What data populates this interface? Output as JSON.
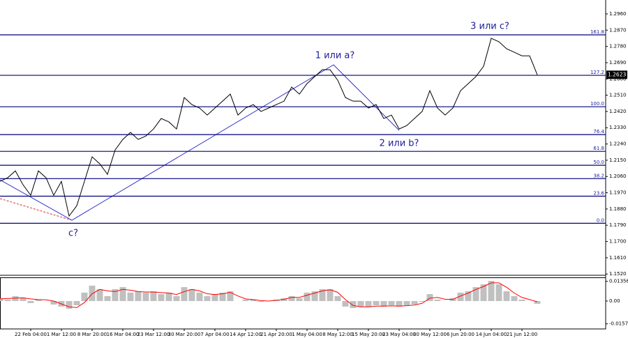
{
  "chart_data": [
    {
      "type": "line",
      "categories": [
        null,
        null,
        null,
        null,
        "22 Feb 04:00",
        null,
        null,
        null,
        "1 Mar 12:00",
        null,
        null,
        null,
        "8 Mar 20:00",
        null,
        null,
        null,
        "16 Mar 04:00",
        null,
        null,
        null,
        "23 Mar 12:00",
        null,
        null,
        null,
        "30 Mar 20:00",
        null,
        null,
        null,
        "7 Apr 04:00",
        null,
        null,
        null,
        "14 Apr 12:00",
        null,
        null,
        null,
        "21 Apr 20:00",
        null,
        null,
        null,
        "1 May 04:00",
        null,
        null,
        null,
        "8 May 12:00",
        null,
        null,
        null,
        "15 May 20:00",
        null,
        null,
        null,
        "23 May 04:00",
        null,
        null,
        null,
        "30 May 12:00",
        null,
        null,
        null,
        "6 Jun 20:00",
        null,
        null,
        null,
        "14 Jun 04:00",
        null,
        null,
        null,
        "21 Jun 12:00",
        null,
        null
      ],
      "values": [
        1.2033,
        1.2053,
        1.2091,
        1.2014,
        1.1956,
        1.2091,
        1.2053,
        1.1956,
        1.2033,
        1.1841,
        1.1898,
        1.2033,
        1.2169,
        1.213,
        1.2072,
        1.2207,
        1.2265,
        1.2304,
        1.2265,
        1.2284,
        1.2323,
        1.2381,
        1.2362,
        1.2323,
        1.2497,
        1.2458,
        1.2439,
        1.24,
        1.2439,
        1.2477,
        1.2516,
        1.24,
        1.2439,
        1.2458,
        1.242,
        1.2439,
        1.2458,
        1.2477,
        1.2555,
        1.2516,
        1.2574,
        1.2613,
        1.2651,
        1.2651,
        1.2593,
        1.2497,
        1.2477,
        1.2477,
        1.2439,
        1.2458,
        1.2381,
        1.24,
        1.2323,
        1.2342,
        1.2381,
        1.242,
        1.2535,
        1.2439,
        1.24,
        1.2439,
        1.2535,
        1.2574,
        1.2613,
        1.267,
        1.2825,
        1.2806,
        1.2767,
        1.2748,
        1.2728,
        1.2728,
        1.2623
      ],
      "color": "#000000",
      "ylim": [
        1.1513,
        1.3037
      ],
      "yticks": [
        {
          "value": 1.296,
          "label": "1.2960"
        },
        {
          "value": 1.287,
          "label": "1.2870"
        },
        {
          "value": 1.278,
          "label": "1.2780"
        },
        {
          "value": 1.269,
          "label": "1.2690"
        },
        {
          "value": 1.26,
          "label": "1.2600"
        },
        {
          "value": 1.251,
          "label": "1.2510"
        },
        {
          "value": 1.242,
          "label": "1.2420"
        },
        {
          "value": 1.233,
          "label": "1.2330"
        },
        {
          "value": 1.224,
          "label": "1.2240"
        },
        {
          "value": 1.215,
          "label": "1.2150"
        },
        {
          "value": 1.206,
          "label": "1.2060"
        },
        {
          "value": 1.197,
          "label": "1.1970"
        },
        {
          "value": 1.188,
          "label": "1.1880"
        },
        {
          "value": 1.179,
          "label": "1.1790"
        },
        {
          "value": 1.17,
          "label": "1.1700"
        },
        {
          "value": 1.161,
          "label": "1.1610"
        },
        {
          "value": 1.152,
          "label": "1.1520"
        }
      ],
      "last_price": 1.2623,
      "levels": [
        {
          "label": "161.8",
          "value": 1.2844
        },
        {
          "label": "127.2",
          "value": 1.262
        },
        {
          "label": "100.0",
          "value": 1.2446
        },
        {
          "label": "76.4",
          "value": 1.2292
        },
        {
          "label": "61.8",
          "value": 1.2199
        },
        {
          "label": "50.0",
          "value": 1.2122
        },
        {
          "label": "38.2",
          "value": 1.2048
        },
        {
          "label": "23.6",
          "value": 1.1951
        },
        {
          "label": "0.0",
          "value": 1.1801
        }
      ],
      "level_color": "#00007f",
      "annotations": [
        "1 или a?",
        "2 или b?",
        "3 или c?",
        "c?"
      ]
    },
    {
      "type": "combo",
      "series": [
        {
          "style": "bar",
          "color": "#c0c0c0",
          "values": [
            0.0019,
            0.001,
            0.0034,
            0.0019,
            -0.0014,
            0.001,
            0,
            -0.0024,
            -0.0038,
            -0.0053,
            -0.0029,
            0.0058,
            0.0106,
            0.0082,
            0.0034,
            0.0082,
            0.0096,
            0.0058,
            0.0067,
            0.0058,
            0.0067,
            0.0048,
            0.0058,
            0.0034,
            0.0096,
            0.0082,
            0.0058,
            0.0034,
            0.0048,
            0.0058,
            0.0067,
            0,
            0.001,
            0.001,
            -0.0005,
            0,
            0.001,
            0.0019,
            0.0034,
            0.0019,
            0.0058,
            0.0067,
            0.0082,
            0.0082,
            0.0034,
            -0.0038,
            -0.0048,
            -0.0038,
            -0.0038,
            -0.0029,
            -0.0038,
            -0.0029,
            -0.0038,
            -0.0029,
            -0.0024,
            -0.0005,
            0.0048,
            0.001,
            0,
            0.0019,
            0.0058,
            0.0067,
            0.0096,
            0.0115,
            0.0139,
            0.0115,
            0.0067,
            0.0034,
            0.001,
            0,
            -0.0019
          ]
        },
        {
          "style": "line",
          "color": "#ff0000",
          "values": [
            0.0015,
            0.0017,
            0.002,
            0.0022,
            0.0015,
            0.001,
            0.0008,
            0,
            -0.002,
            -0.004,
            -0.0045,
            -0.001,
            0.005,
            0.008,
            0.007,
            0.0065,
            0.008,
            0.0075,
            0.0065,
            0.0062,
            0.0062,
            0.0058,
            0.0055,
            0.0045,
            0.0065,
            0.008,
            0.007,
            0.005,
            0.0045,
            0.005,
            0.006,
            0.0035,
            0.0015,
            0.001,
            0.0003,
            0,
            0.0005,
            0.0012,
            0.0025,
            0.0025,
            0.004,
            0.0055,
            0.007,
            0.0078,
            0.006,
            0.001,
            -0.003,
            -0.004,
            -0.004,
            -0.0035,
            -0.0035,
            -0.0033,
            -0.0035,
            -0.0032,
            -0.0028,
            -0.0015,
            0.002,
            0.0025,
            0.0012,
            0.0012,
            0.0035,
            0.0055,
            0.008,
            0.01,
            0.0125,
            0.0125,
            0.0095,
            0.0055,
            0.0025,
            0.001,
            -0.0005
          ]
        }
      ],
      "ylim": [
        -0.0192,
        0.0163
      ],
      "yticks": [
        0.01356,
        {
          "value": 0,
          "label": "0.00"
        },
        -0.0157
      ]
    }
  ]
}
